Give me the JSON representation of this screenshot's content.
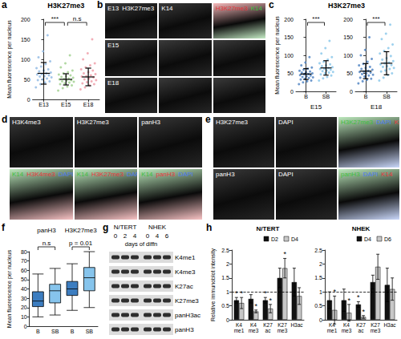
{
  "chart_data": [
    {
      "panel": "a",
      "type": "strip",
      "title": "H3K27me3",
      "ylabel": "Mean fluorescence per nucleus",
      "ylim": [
        0,
        200
      ],
      "yticks": [
        0,
        50,
        100,
        150,
        200
      ],
      "grid": false,
      "marker": "circle",
      "subplots": [
        {
          "categories": [
            "E13",
            "E15",
            "E18"
          ],
          "colors": [
            "#8db8e3",
            "#9fd08c",
            "#ef9aa5"
          ],
          "points": [
            [
              30,
              38,
              42,
              45,
              48,
              50,
              52,
              55,
              57,
              58,
              60,
              62,
              63,
              65,
              67,
              70,
              72,
              75,
              78,
              82,
              88,
              95,
              105,
              120,
              160
            ],
            [
              22,
              28,
              32,
              35,
              38,
              40,
              42,
              44,
              45,
              47,
              48,
              50,
              51,
              52,
              54,
              56,
              58,
              60,
              62,
              65,
              68,
              72,
              80,
              90,
              110
            ],
            [
              25,
              30,
              35,
              38,
              40,
              43,
              45,
              48,
              50,
              52,
              55,
              57,
              58,
              60,
              63,
              65,
              68,
              72,
              75,
              80,
              85,
              90,
              100,
              115,
              150
            ]
          ],
          "mean": [
            65,
            50,
            56
          ],
          "sd": [
            27,
            14,
            22
          ],
          "annotations": [
            {
              "text": "***",
              "from": "E13",
              "to": "E15"
            },
            {
              "text": "n.s",
              "from": "E15",
              "to": "E18"
            }
          ]
        }
      ]
    },
    {
      "panel": "c",
      "type": "strip",
      "title": "H3K27me3",
      "ylabel": "Mean fluorescence per nucleus",
      "ylim": [
        0,
        200
      ],
      "yticks": [
        0,
        50,
        100,
        150,
        200
      ],
      "grid": false,
      "marker": "circle",
      "subplots": [
        {
          "xlabel": "E15",
          "categories": [
            "B",
            "SB"
          ],
          "colors": [
            "#4a7fc1",
            "#86c5ea"
          ],
          "points": [
            [
              20,
              25,
              28,
              30,
              33,
              35,
              37,
              39,
              40,
              42,
              44,
              45,
              47,
              48,
              50,
              52,
              53,
              55,
              57,
              60,
              63,
              66,
              72,
              80,
              95
            ],
            [
              30,
              36,
              40,
              44,
              47,
              50,
              52,
              54,
              56,
              58,
              60,
              62,
              63,
              65,
              67,
              70,
              72,
              75,
              78,
              82,
              88,
              95,
              105,
              120,
              140
            ]
          ],
          "mean": [
            48,
            65
          ],
          "sd": [
            15,
            20
          ],
          "annotations": [
            {
              "text": "***",
              "from": "B",
              "to": "SB"
            }
          ]
        },
        {
          "xlabel": "E18",
          "categories": [
            "B",
            "SB"
          ],
          "colors": [
            "#4a7fc1",
            "#86c5ea"
          ],
          "points": [
            [
              22,
              28,
              32,
              35,
              38,
              41,
              44,
              46,
              48,
              50,
              52,
              54,
              55,
              57,
              60,
              62,
              65,
              68,
              72,
              76,
              82,
              90,
              100,
              115,
              150
            ],
            [
              30,
              38,
              45,
              50,
              55,
              58,
              62,
              65,
              68,
              70,
              73,
              75,
              78,
              80,
              84,
              88,
              92,
              98,
              105,
              112,
              120,
              130,
              145,
              160,
              185
            ]
          ],
          "mean": [
            56,
            78
          ],
          "sd": [
            21,
            32
          ],
          "annotations": [
            {
              "text": "***",
              "from": "B",
              "to": "SB"
            }
          ]
        }
      ]
    },
    {
      "panel": "f",
      "type": "box",
      "ylabel": "Mean fluorescence per nucleus",
      "ylim": [
        0,
        80
      ],
      "yticks": [
        0,
        10,
        20,
        30,
        40,
        50,
        60,
        70,
        80
      ],
      "grid": false,
      "colors": [
        "#3c7dc0",
        "#86c4ec"
      ],
      "groups": [
        {
          "label": "panH3",
          "categories": [
            "B",
            "SB"
          ],
          "boxes": [
            [
              10,
              21,
              27,
              37,
              56
            ],
            [
              12,
              25,
              38,
              45,
              62
            ]
          ],
          "annotation": "n.s"
        },
        {
          "label": "H3K27me3",
          "categories": [
            "B",
            "SB"
          ],
          "boxes": [
            [
              17,
              33,
              40,
              48,
              67
            ],
            [
              20,
              38,
              52,
              63,
              80
            ]
          ],
          "annotation": "p = 0.01"
        }
      ]
    },
    {
      "panel": "h",
      "type": "bar",
      "ylabel": "Relative immunoblot intensity",
      "ylim": [
        0,
        2.5
      ],
      "yticks": [
        0,
        0.5,
        1,
        1.5,
        2,
        2.5
      ],
      "grid": false,
      "reference_line": {
        "value": 1,
        "line_style": "dashed"
      },
      "subplots": [
        {
          "title": "N/TERT",
          "categories": [
            "K4\nme1",
            "K4\nme3",
            "K27\nac",
            "K27\nme3",
            "H3ac"
          ],
          "series": [
            {
              "name": "D2",
              "color": "#111111",
              "values": [
                0.7,
                0.75,
                0.7,
                1.5,
                1.35
              ],
              "errors": [
                0.1,
                0.15,
                0.1,
                0.35,
                0.5
              ],
              "significance": [
                "*",
                null,
                "*",
                null,
                null
              ]
            },
            {
              "name": "D4",
              "color": "#c8c8c8",
              "values": [
                0.6,
                0.3,
                0.4,
                1.85,
                0.85
              ],
              "errors": [
                0.2,
                0.05,
                0.15,
                0.35,
                0.3
              ],
              "significance": [
                "*",
                "*",
                "*",
                "*",
                null
              ]
            }
          ]
        },
        {
          "title": "NHEK",
          "categories": [
            "K4\nme1",
            "K4\nme3",
            "K27\nac",
            "K27\nme3",
            "H3ac"
          ],
          "series": [
            {
              "name": "D4",
              "color": "#111111",
              "values": [
                0.7,
                0.7,
                0.55,
                1.35,
                1.25
              ],
              "errors": [
                0.3,
                0.4,
                0.1,
                0.25,
                0.6
              ],
              "significance": [
                null,
                null,
                "*",
                null,
                null
              ]
            },
            {
              "name": "D6",
              "color": "#c8c8c8",
              "values": [
                0.35,
                0.25,
                0.1,
                1.9,
                1.1
              ],
              "errors": [
                0.5,
                0.3,
                0.05,
                0.45,
                0.4
              ],
              "significance": [
                "*",
                "*",
                "*",
                null,
                null
              ]
            }
          ]
        }
      ]
    }
  ],
  "images": [
    {
      "panel": "b",
      "rows": 3,
      "cols": 3,
      "tiles": [
        [
          [
            {
              "text": "E13",
              "color": "#ffffff"
            },
            {
              "text": "H3K27me3",
              "color": "#ffffff"
            }
          ],
          [
            {
              "text": "K14",
              "color": "#ffffff"
            }
          ],
          [
            {
              "text": "H3K27me3",
              "color": "#e8383d"
            },
            {
              "text": "K14",
              "color": "#3fbf3f"
            }
          ]
        ],
        [
          [
            {
              "text": "E15",
              "color": "#ffffff"
            }
          ],
          [],
          []
        ],
        [
          [
            {
              "text": "E18",
              "color": "#ffffff"
            }
          ],
          [],
          []
        ]
      ]
    },
    {
      "panel": "d",
      "rows": 2,
      "cols": 3,
      "tiles": [
        [
          [
            {
              "text": "H3K4me3",
              "color": "#ffffff"
            }
          ],
          [
            {
              "text": "H3K27me3",
              "color": "#ffffff"
            }
          ],
          [
            {
              "text": "panH3",
              "color": "#ffffff"
            }
          ]
        ],
        [
          [
            {
              "text": "K14",
              "color": "#3fbf3f"
            },
            {
              "text": "H3K4me3",
              "color": "#e8383d"
            },
            {
              "text": "DAPI",
              "color": "#4f7df0"
            }
          ],
          [
            {
              "text": "K14",
              "color": "#3fbf3f"
            },
            {
              "text": "H3K27me3",
              "color": "#e8383d"
            },
            {
              "text": "DAPI",
              "color": "#4f7df0"
            }
          ],
          [
            {
              "text": "K14",
              "color": "#3fbf3f"
            },
            {
              "text": "panH3",
              "color": "#e8383d"
            },
            {
              "text": "DAPI",
              "color": "#4f7df0"
            }
          ]
        ]
      ]
    },
    {
      "panel": "e",
      "rows": 2,
      "cols": 3,
      "tiles": [
        [
          [
            {
              "text": "H3K27me3",
              "color": "#ffffff"
            }
          ],
          [
            {
              "text": "DAPI",
              "color": "#ffffff"
            }
          ],
          [
            {
              "text": "H3K27me3",
              "color": "#3fbf3f"
            },
            {
              "text": "DAPI",
              "color": "#4f7df0"
            },
            {
              "text": "K14",
              "color": "#e8383d"
            }
          ]
        ],
        [
          [
            {
              "text": "panH3",
              "color": "#ffffff"
            }
          ],
          [
            {
              "text": "DAPI",
              "color": "#ffffff"
            }
          ],
          [
            {
              "text": "panH3",
              "color": "#3fbf3f"
            },
            {
              "text": "DAPI",
              "color": "#4f7df0"
            },
            {
              "text": "K14",
              "color": "#e8383d"
            }
          ]
        ]
      ]
    }
  ],
  "blot": {
    "panel": "g",
    "groups": [
      {
        "label": "N/TERT",
        "days": [
          "0",
          "2",
          "4"
        ]
      },
      {
        "label": "NHEK",
        "days": [
          "0",
          "4",
          "6"
        ]
      }
    ],
    "xlabel": "days of diffn",
    "rows": [
      "K4me1",
      "K4me3",
      "K27ac",
      "K27me3",
      "panH3ac",
      "panH3"
    ]
  }
}
